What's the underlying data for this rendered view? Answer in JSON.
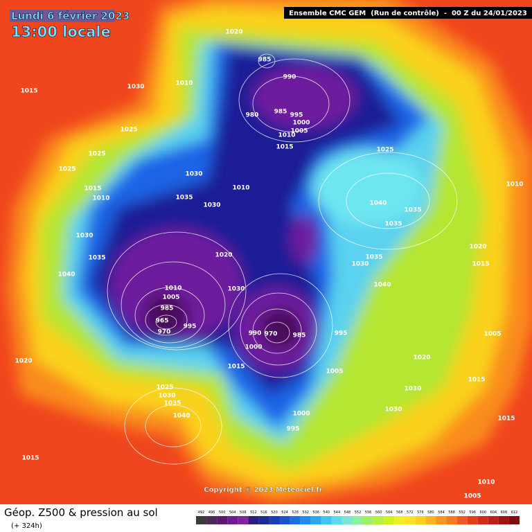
{
  "header": {
    "date": "Lundi 6 février 2023",
    "time": "13:00 locale",
    "model": "Ensemble CMC GEM  (Run de contrôle)  -  00 Z du 24/01/2023"
  },
  "copyright": "Copyright © 2023 Meteociel.fr",
  "footer": {
    "title": "Géop. Z500 & pression au sol",
    "lead": "(+ 324h)"
  },
  "scale": {
    "values": [
      492,
      496,
      500,
      504,
      508,
      512,
      516,
      520,
      524,
      528,
      532,
      536,
      540,
      544,
      548,
      552,
      556,
      560,
      564,
      568,
      572,
      576,
      580,
      584,
      588,
      592,
      596,
      600,
      604,
      608,
      612
    ],
    "colors": [
      "#3a3a3a",
      "#4b2a5a",
      "#5a1a6e",
      "#6e1e8c",
      "#7e24a0",
      "#2a1e7a",
      "#1e2a96",
      "#1e3cb4",
      "#1e50d2",
      "#1e6ee6",
      "#1e8cf0",
      "#28a8f0",
      "#3cc8f0",
      "#5adcf0",
      "#7ae6d2",
      "#8cf0a0",
      "#a0f064",
      "#b4f03c",
      "#d2f01e",
      "#f0f01e",
      "#fae61e",
      "#fad21e",
      "#fab41e",
      "#fa961e",
      "#fa7a1e",
      "#f05a1e",
      "#e63c1e",
      "#d2281e",
      "#be1e1e",
      "#a01414",
      "#820a0a"
    ]
  },
  "pressure_labels": [
    1020,
    985,
    990,
    1030,
    1010,
    1015,
    980,
    985,
    995,
    1000,
    1005,
    1010,
    1015,
    1025,
    1025,
    1025,
    1025,
    1030,
    1010,
    1015,
    1010,
    1035,
    1030,
    1040,
    1035,
    1035,
    1010,
    1030,
    1035,
    1020,
    1040,
    1030,
    1035,
    1020,
    1015,
    1010,
    1005,
    1030,
    1040,
    985,
    965,
    970,
    995,
    990,
    970,
    985,
    995,
    1000,
    1005,
    1020,
    1015,
    1005,
    1015,
    1020,
    1025,
    1030,
    1035,
    1030,
    1030,
    1040,
    1000,
    995,
    1015,
    1015,
    1010,
    1005
  ]
}
